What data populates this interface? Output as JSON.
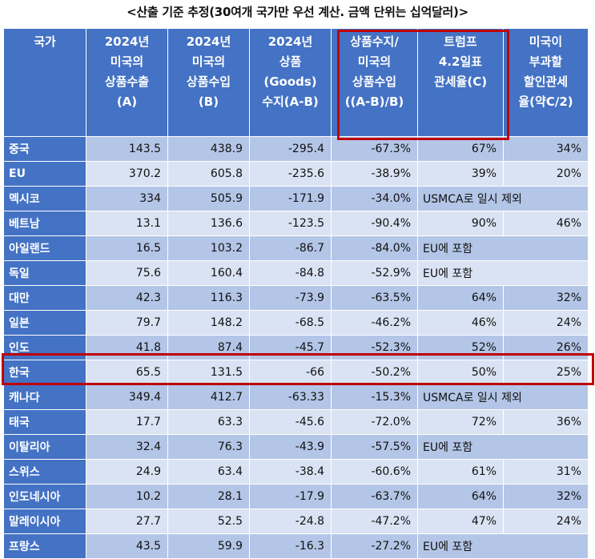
{
  "title": "<산출 기준 추정(30여개 국가만 우선 계산. 금액 단위는 십억달러)>",
  "headers": [
    {
      "lines": [
        "국가"
      ]
    },
    {
      "lines": [
        "2024년",
        "미국의",
        "상품수출",
        "(A)"
      ]
    },
    {
      "lines": [
        "2024년",
        "미국의",
        "상품수입",
        "(B)"
      ]
    },
    {
      "lines": [
        "2024년",
        "상품",
        "(Goods)",
        "수지(A-B)"
      ]
    },
    {
      "lines": [
        "상품수지/",
        "미국의",
        "상품수입",
        "((A-B)/B)"
      ]
    },
    {
      "lines": [
        "트럼프",
        "4.2일표",
        "관세율(C)"
      ]
    },
    {
      "lines": [
        "미국이",
        "부과할",
        "할인관세",
        "율(약C/2)"
      ]
    }
  ],
  "rows": [
    {
      "country": "중국",
      "export": "143.5",
      "import": "438.9",
      "balance": "-295.4",
      "ratio": "-67.3%",
      "tariff": "67%",
      "discount": "34%"
    },
    {
      "country": "EU",
      "export": "370.2",
      "import": "605.8",
      "balance": "-235.6",
      "ratio": "-38.9%",
      "tariff": "39%",
      "discount": "20%"
    },
    {
      "country": "멕시코",
      "export": "334",
      "import": "505.9",
      "balance": "-171.9",
      "ratio": "-34.0%",
      "note": "USMCA로 일시 제외"
    },
    {
      "country": "베트남",
      "export": "13.1",
      "import": "136.6",
      "balance": "-123.5",
      "ratio": "-90.4%",
      "tariff": "90%",
      "discount": "46%"
    },
    {
      "country": "아일랜드",
      "export": "16.5",
      "import": "103.2",
      "balance": "-86.7",
      "ratio": "-84.0%",
      "note": "EU에 포함"
    },
    {
      "country": "독일",
      "export": "75.6",
      "import": "160.4",
      "balance": "-84.8",
      "ratio": "-52.9%",
      "note": "EU에 포함"
    },
    {
      "country": "대만",
      "export": "42.3",
      "import": "116.3",
      "balance": "-73.9",
      "ratio": "-63.5%",
      "tariff": "64%",
      "discount": "32%"
    },
    {
      "country": "일본",
      "export": "79.7",
      "import": "148.2",
      "balance": "-68.5",
      "ratio": "-46.2%",
      "tariff": "46%",
      "discount": "24%"
    },
    {
      "country": "인도",
      "export": "41.8",
      "import": "87.4",
      "balance": "-45.7",
      "ratio": "-52.3%",
      "tariff": "52%",
      "discount": "26%"
    },
    {
      "country": "한국",
      "export": "65.5",
      "import": "131.5",
      "balance": "-66",
      "ratio": "-50.2%",
      "tariff": "50%",
      "discount": "25%"
    },
    {
      "country": "캐나다",
      "export": "349.4",
      "import": "412.7",
      "balance": "-63.33",
      "ratio": "-15.3%",
      "note": "USMCA로 일시 제외"
    },
    {
      "country": "태국",
      "export": "17.7",
      "import": "63.3",
      "balance": "-45.6",
      "ratio": "-72.0%",
      "tariff": "72%",
      "discount": "36%"
    },
    {
      "country": "이탈리아",
      "export": "32.4",
      "import": "76.3",
      "balance": "-43.9",
      "ratio": "-57.5%",
      "note": "EU에 포함"
    },
    {
      "country": "스위스",
      "export": "24.9",
      "import": "63.4",
      "balance": "-38.4",
      "ratio": "-60.6%",
      "tariff": "61%",
      "discount": "31%"
    },
    {
      "country": "인도네시아",
      "export": "10.2",
      "import": "28.1",
      "balance": "-17.9",
      "ratio": "-63.7%",
      "tariff": "64%",
      "discount": "32%"
    },
    {
      "country": "말레이시아",
      "export": "27.7",
      "import": "52.5",
      "balance": "-24.8",
      "ratio": "-47.2%",
      "tariff": "47%",
      "discount": "24%"
    },
    {
      "country": "프랑스",
      "export": "43.5",
      "import": "59.9",
      "balance": "-16.3",
      "ratio": "-27.2%",
      "note": "EU에 포함"
    }
  ],
  "colors": {
    "header": "#4472c4",
    "row_dark": "#b4c6e7",
    "row_light": "#dae3f3",
    "highlight": "#c00000"
  }
}
